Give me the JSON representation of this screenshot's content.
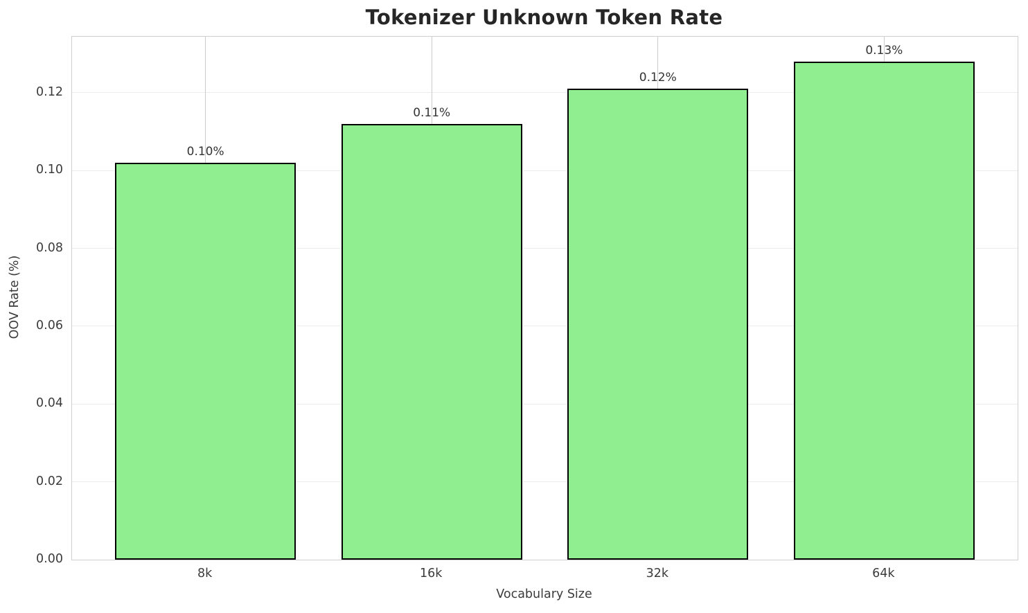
{
  "chart_data": {
    "type": "bar",
    "title": "Tokenizer Unknown Token Rate",
    "xlabel": "Vocabulary Size",
    "ylabel": "OOV Rate (%)",
    "categories": [
      "8k",
      "16k",
      "32k",
      "64k"
    ],
    "values": [
      0.102,
      0.112,
      0.121,
      0.128
    ],
    "bar_labels": [
      "0.10%",
      "0.11%",
      "0.12%",
      "0.13%"
    ],
    "y_ticks": [
      0.0,
      0.02,
      0.04,
      0.06,
      0.08,
      0.1,
      0.12
    ],
    "y_tick_labels": [
      "0.00",
      "0.02",
      "0.04",
      "0.06",
      "0.08",
      "0.10",
      "0.12"
    ],
    "ylim": [
      0,
      0.1344
    ],
    "xlim": [
      -0.59,
      3.59
    ],
    "bar_width": 0.8,
    "grid": true,
    "legend": null,
    "colors": {
      "bar_fill": "#90EE90",
      "bar_edge": "#000000",
      "h_grid": "#ececec",
      "v_grid": "#cccccc",
      "spine": "#cfcfcf",
      "title_text": "#262626",
      "tick_text": "#3b3b3b",
      "bar_label_text": "#333333"
    }
  }
}
